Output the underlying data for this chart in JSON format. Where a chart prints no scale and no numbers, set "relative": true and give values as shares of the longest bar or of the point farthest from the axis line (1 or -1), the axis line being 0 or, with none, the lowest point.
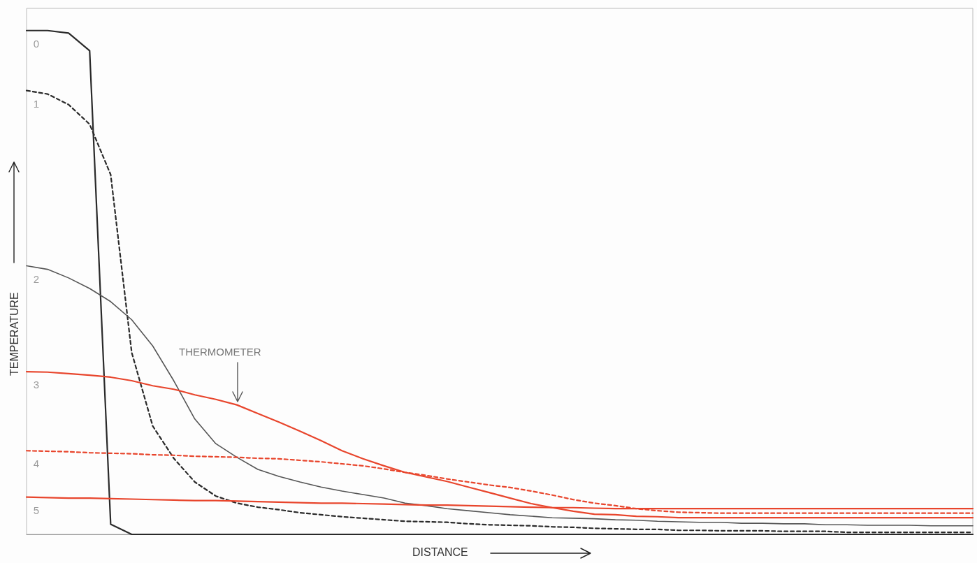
{
  "chart_data": {
    "type": "line",
    "relative": true,
    "xlabel": "DISTANCE",
    "ylabel": "TEMPERATURE",
    "annotations": [
      "THERMOMETER"
    ],
    "grid": false,
    "legend": false,
    "marker": "none",
    "categories": [
      null,
      null,
      null,
      null,
      null,
      null,
      null,
      null,
      null,
      null,
      null,
      null,
      null,
      null,
      null,
      null,
      null,
      null,
      null,
      null,
      null,
      null,
      null,
      null,
      null,
      null,
      null,
      null,
      null,
      null,
      null,
      null,
      null,
      null,
      null,
      null,
      null,
      null,
      null,
      null,
      null,
      null,
      null,
      null,
      null,
      null
    ],
    "series": [
      {
        "name": "0",
        "color": "#2a2a2a",
        "line_style": "solid",
        "values": [
          1,
          1,
          0.995,
          0.96,
          0.02,
          0,
          0,
          0,
          0,
          0,
          0,
          0,
          0,
          0,
          0,
          0,
          0,
          0,
          0,
          0,
          0,
          0,
          0,
          0,
          0,
          0,
          0,
          0,
          0,
          0,
          0,
          0,
          0,
          0,
          0,
          0,
          0,
          0,
          0,
          0,
          0,
          0,
          0,
          0,
          0,
          0
        ]
      },
      {
        "name": "1",
        "color": "#2a2a2a",
        "line_style": "dashed",
        "values": [
          0.881,
          0.874,
          0.853,
          0.814,
          0.714,
          0.361,
          0.215,
          0.151,
          0.104,
          0.076,
          0.062,
          0.054,
          0.049,
          0.043,
          0.039,
          0.035,
          0.032,
          0.029,
          0.026,
          0.025,
          0.024,
          0.021,
          0.019,
          0.018,
          0.017,
          0.015,
          0.014,
          0.012,
          0.011,
          0.01,
          0.01,
          0.008,
          0.008,
          0.007,
          0.007,
          0.007,
          0.006,
          0.006,
          0.006,
          0.004,
          0.004,
          0.004,
          0.004,
          0.004,
          0.004,
          0.004
        ]
      },
      {
        "name": "2",
        "color": "#555555",
        "line_style": "solid",
        "values": [
          0.533,
          0.526,
          0.509,
          0.488,
          0.462,
          0.426,
          0.374,
          0.305,
          0.229,
          0.18,
          0.153,
          0.129,
          0.115,
          0.104,
          0.094,
          0.086,
          0.079,
          0.072,
          0.062,
          0.057,
          0.051,
          0.047,
          0.043,
          0.039,
          0.036,
          0.033,
          0.032,
          0.031,
          0.029,
          0.028,
          0.026,
          0.025,
          0.024,
          0.024,
          0.022,
          0.022,
          0.021,
          0.021,
          0.019,
          0.019,
          0.018,
          0.018,
          0.018,
          0.017,
          0.017,
          0.017
        ]
      },
      {
        "name": "3",
        "color": "#e8452c",
        "line_style": "solid",
        "values": [
          0.323,
          0.322,
          0.319,
          0.316,
          0.312,
          0.305,
          0.295,
          0.288,
          0.277,
          0.268,
          0.257,
          0.24,
          0.223,
          0.205,
          0.186,
          0.166,
          0.15,
          0.136,
          0.123,
          0.114,
          0.105,
          0.094,
          0.083,
          0.072,
          0.061,
          0.053,
          0.046,
          0.04,
          0.039,
          0.036,
          0.035,
          0.033,
          0.033,
          0.033,
          0.033,
          0.033,
          0.033,
          0.033,
          0.033,
          0.033,
          0.033,
          0.033,
          0.033,
          0.033,
          0.033,
          0.033
        ]
      },
      {
        "name": "4",
        "color": "#e8452c",
        "line_style": "dashed",
        "values": [
          0.166,
          0.165,
          0.164,
          0.162,
          0.161,
          0.16,
          0.158,
          0.157,
          0.155,
          0.154,
          0.153,
          0.151,
          0.15,
          0.147,
          0.144,
          0.14,
          0.136,
          0.13,
          0.123,
          0.117,
          0.11,
          0.104,
          0.098,
          0.093,
          0.086,
          0.078,
          0.069,
          0.062,
          0.057,
          0.051,
          0.047,
          0.044,
          0.043,
          0.042,
          0.042,
          0.042,
          0.042,
          0.042,
          0.042,
          0.042,
          0.042,
          0.042,
          0.042,
          0.042,
          0.042,
          0.042
        ]
      },
      {
        "name": "5",
        "color": "#e8452c",
        "line_style": "solid",
        "values": [
          0.074,
          0.073,
          0.072,
          0.072,
          0.071,
          0.07,
          0.069,
          0.068,
          0.067,
          0.067,
          0.066,
          0.065,
          0.064,
          0.063,
          0.062,
          0.062,
          0.061,
          0.06,
          0.059,
          0.058,
          0.058,
          0.057,
          0.056,
          0.055,
          0.054,
          0.053,
          0.053,
          0.052,
          0.051,
          0.051,
          0.051,
          0.051,
          0.051,
          0.051,
          0.051,
          0.051,
          0.051,
          0.051,
          0.051,
          0.051,
          0.051,
          0.051,
          0.051,
          0.051,
          0.051,
          0.051
        ]
      }
    ]
  }
}
